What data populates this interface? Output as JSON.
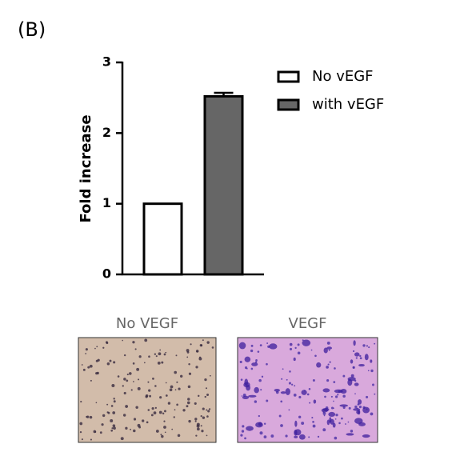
{
  "panel_label": "(B)",
  "chart_data": {
    "type": "bar",
    "ylabel": "Fold increase",
    "categories": [
      null
    ],
    "series": [
      {
        "name": "No vEGF",
        "color": "#ffffff",
        "values": [
          1
        ]
      },
      {
        "name": "with vEGF",
        "color": "#666666",
        "values": [
          2.52
        ],
        "errors": [
          0.05
        ]
      }
    ],
    "ylim": [
      0,
      3
    ],
    "yticks": [
      0,
      1,
      2,
      3
    ],
    "legend": "upper right"
  },
  "images": [
    {
      "label": "No VEGF"
    },
    {
      "label": "VEGF"
    }
  ]
}
